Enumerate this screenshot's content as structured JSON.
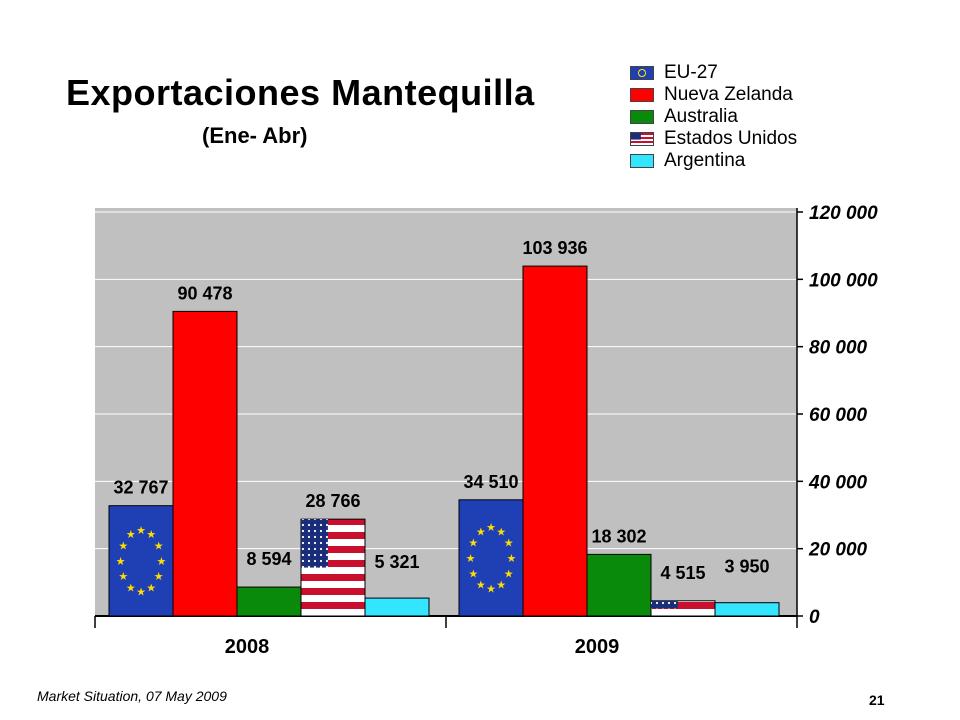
{
  "chart_data": {
    "type": "bar",
    "title": "Exportaciones Mantequilla",
    "subtitle": "(Ene- Abr)",
    "categories": [
      "2008",
      "2009"
    ],
    "series": [
      {
        "name": "EU-27",
        "values": [
          32767,
          34510
        ],
        "labels": [
          "32 767",
          "34 510"
        ],
        "color": "#1f3fb5",
        "pattern": "eu-flag"
      },
      {
        "name": "Nueva Zelanda",
        "values": [
          90478,
          103936
        ],
        "labels": [
          "90 478",
          "103 936"
        ],
        "color": "#ff0000",
        "pattern": "solid"
      },
      {
        "name": "Australia",
        "values": [
          8594,
          18302
        ],
        "labels": [
          "8 594",
          "18 302"
        ],
        "color": "#0a8a0a",
        "pattern": "solid"
      },
      {
        "name": "Estados Unidos",
        "values": [
          28766,
          4515
        ],
        "labels": [
          "28 766",
          "4 515"
        ],
        "color": "#c8102e",
        "pattern": "us-flag"
      },
      {
        "name": "Argentina",
        "values": [
          5321,
          3950
        ],
        "labels": [
          "5 321",
          "3 950"
        ],
        "color": "#33e5ff",
        "pattern": "solid"
      }
    ],
    "yticks": [
      0,
      20000,
      40000,
      60000,
      80000,
      100000,
      120000
    ],
    "ytick_labels": [
      "0",
      "20 000",
      "40 000",
      "60 000",
      "80 000",
      "100 000",
      "120 000"
    ],
    "ylim": [
      0,
      120000
    ],
    "y_axis_side": "right",
    "grid": true,
    "plot_background": "#c0c0c0",
    "legend_position": "top-right"
  },
  "footer": {
    "source": "Market Situation, 07 May 2009",
    "page_number": "21"
  }
}
